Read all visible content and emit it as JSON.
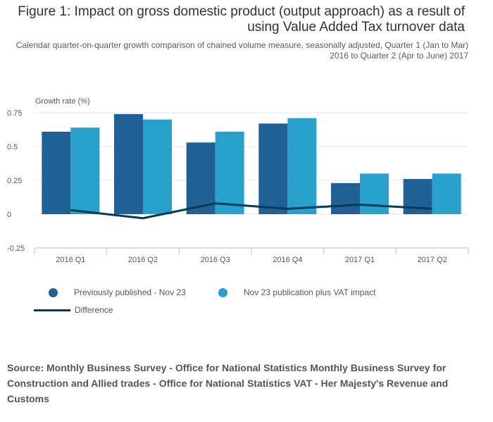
{
  "title": "Figure 1: Impact on gross domestic product (output approach) as a result of using Value Added Tax turnover data",
  "subtitle": "Calendar quarter-on-quarter growth comparison of chained volume measure, seasonally adjusted, Quarter 1 (Jan to Mar) 2016 to Quarter 2 (Apr to June) 2017",
  "source": "Source: Monthly Business Survey - Office for National Statistics Monthly Business Survey for Construction and Allied trades - Office for National Statistics VAT - Her Majesty's Revenue and Customs",
  "colors": {
    "previous": "#206095",
    "vat": "#27a0cc",
    "difference": "#003c57",
    "grid": "#e6e6e6",
    "axis": "#bfbfbf"
  },
  "chart_data": {
    "type": "bar",
    "ylabel": "Growth rate (%)",
    "xlabel": "",
    "categories": [
      "2016 Q1",
      "2016 Q2",
      "2016 Q3",
      "2016 Q4",
      "2017 Q1",
      "2017 Q2"
    ],
    "ylim": [
      -0.25,
      0.75
    ],
    "yticks": [
      0.75,
      0.5,
      0.25,
      0,
      -0.25
    ],
    "ytick_labels": [
      "0.75",
      "0.5",
      "0.25",
      "0",
      "-0.25"
    ],
    "grid": true,
    "legend_position": "bottom",
    "series": [
      {
        "name": "Previously published - Nov 23",
        "kind": "bar",
        "values": [
          0.61,
          0.74,
          0.53,
          0.67,
          0.23,
          0.26
        ]
      },
      {
        "name": "Nov 23 publication plus VAT impact",
        "kind": "bar",
        "values": [
          0.64,
          0.7,
          0.61,
          0.71,
          0.3,
          0.3
        ]
      },
      {
        "name": "Difference",
        "kind": "line",
        "values": [
          0.03,
          -0.03,
          0.08,
          0.04,
          0.07,
          0.04
        ]
      }
    ]
  }
}
